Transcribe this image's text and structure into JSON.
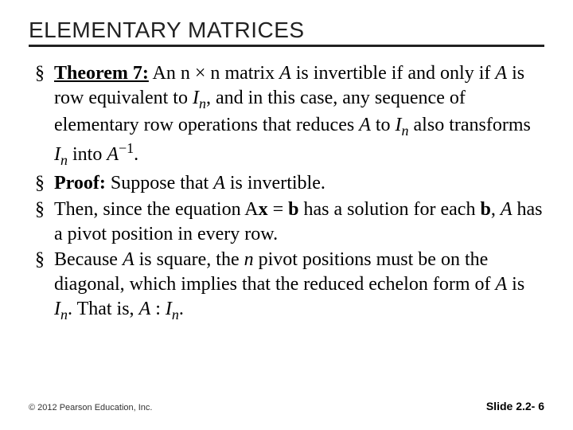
{
  "title": "ELEMENTARY MATRICES",
  "bullets": {
    "b1_strong": "Theorem 7:",
    "b1_t1": " An ",
    "b1_math1": "n × n",
    "b1_t2": " matrix ",
    "b1_A1": "A",
    "b1_t3": " is invertible if and only if ",
    "b1_A2": "A",
    "b1_t4": " is row equivalent to ",
    "b1_I1": "I",
    "b1_n1": "n",
    "b1_t5": ", and in this case, any sequence of elementary row operations that reduces ",
    "b1_A3": "A",
    "b1_t6": " to ",
    "b1_I2": "I",
    "b1_n2": "n",
    "b1_t7": " also transforms ",
    "b1_I3": "I",
    "b1_n3": "n",
    "b1_t8": " into ",
    "b1_A4": "A",
    "b1_inv": "−1",
    "b1_t9": ".",
    "b2_strong": "Proof:",
    "b2_t1": " Suppose that ",
    "b2_A": "A",
    "b2_t2": " is invertible.",
    "b3_t1": "Then, since the equation ",
    "b3_eqA": "A",
    "b3_eqx": "x",
    "b3_eq": " = ",
    "b3_eqb": "b",
    "b3_t2": " has a solution for each ",
    "b3_b": "b",
    "b3_t3": ", ",
    "b3_A": "A",
    "b3_t4": " has a pivot position in every row.",
    "b4_t1": "Because ",
    "b4_A1": "A",
    "b4_t2": " is square, the ",
    "b4_n": "n",
    "b4_t3": " pivot positions must be on the diagonal, which implies that the reduced echelon form of ",
    "b4_A2": "A",
    "b4_t4": " is ",
    "b4_I": "I",
    "b4_nsub": "n",
    "b4_t5": ". That is, ",
    "b4_A3": "A",
    "b4_colon": " : ",
    "b4_I2": "I",
    "b4_nsub2": "n",
    "b4_t6": "."
  },
  "footer": {
    "left": "© 2012 Pearson Education, Inc.",
    "right": "Slide 2.2- 6"
  },
  "colors": {
    "text": "#000000",
    "title": "#222222",
    "rule": "#222222",
    "background": "#ffffff"
  },
  "fonts": {
    "title_family": "Arial",
    "title_size_pt": 21,
    "body_family": "Times New Roman",
    "body_size_pt": 18,
    "footer_left_size_pt": 8,
    "footer_right_size_pt": 11
  }
}
